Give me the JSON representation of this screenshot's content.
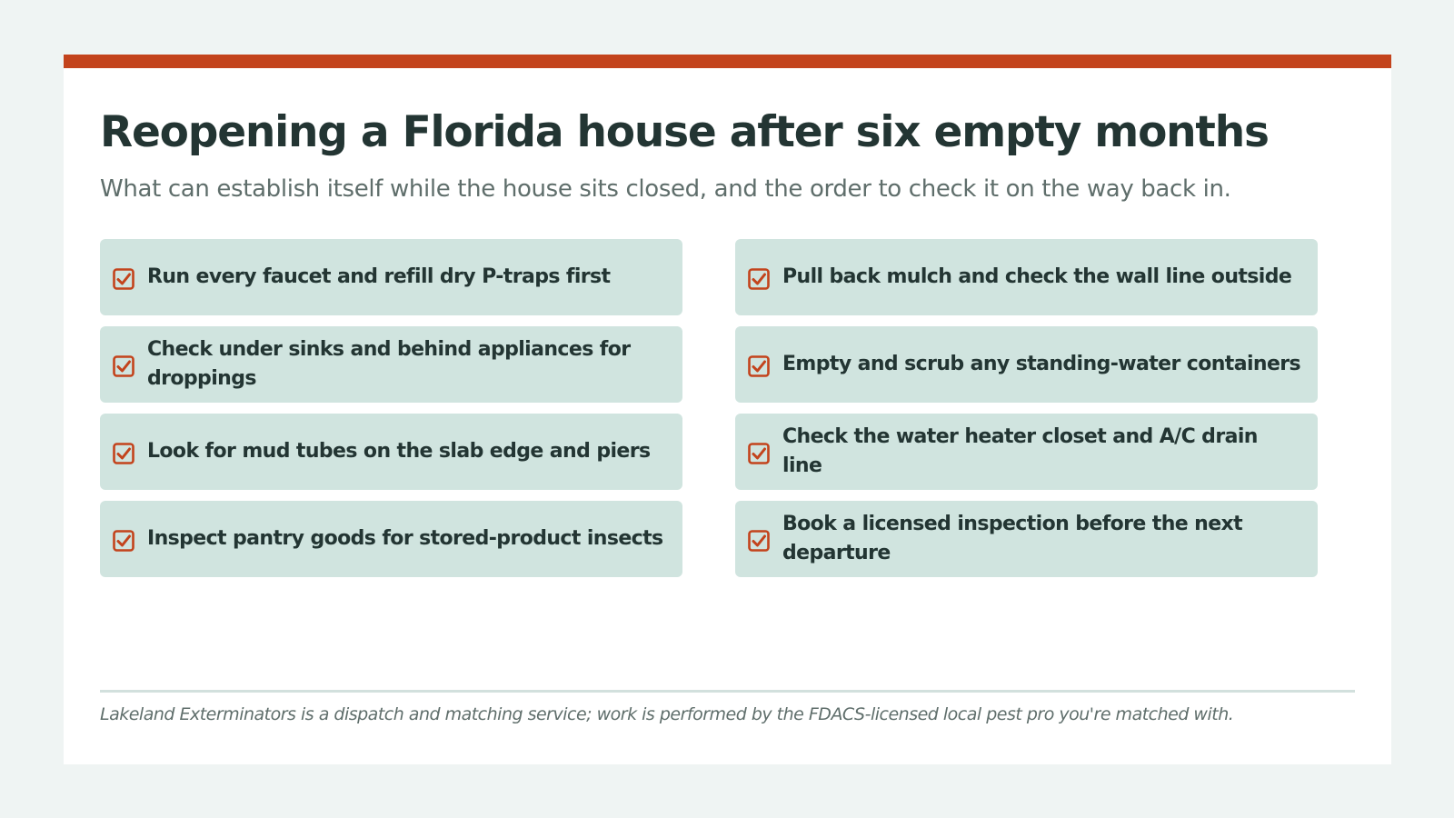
{
  "header": {
    "title": "Reopening a Florida house after six empty months",
    "subtitle": "What can establish itself while the house sits closed, and the order to check it on the way back in."
  },
  "checklist": {
    "icon": "checked-box-icon",
    "items": [
      {
        "label": "Run every faucet and refill dry P-traps first"
      },
      {
        "label": "Pull back mulch and check the wall line outside"
      },
      {
        "label": "Check under sinks and behind appliances for droppings"
      },
      {
        "label": "Empty and scrub any standing-water containers"
      },
      {
        "label": "Look for mud tubes on the slab edge and piers"
      },
      {
        "label": "Check the water heater closet and A/C drain line"
      },
      {
        "label": "Inspect pantry goods for stored-product insects"
      },
      {
        "label": "Book a licensed inspection before the next departure"
      }
    ]
  },
  "footer": {
    "disclaimer": "Lakeland Exterminators is a dispatch and matching service; work is performed by the FDACS-licensed local pest pro you're matched with."
  },
  "colors": {
    "accent": "#c3431c",
    "item_background": "#d0e4df",
    "title_text": "#233533",
    "muted_text": "#5f6e6b",
    "page_background": "#eff4f3"
  }
}
